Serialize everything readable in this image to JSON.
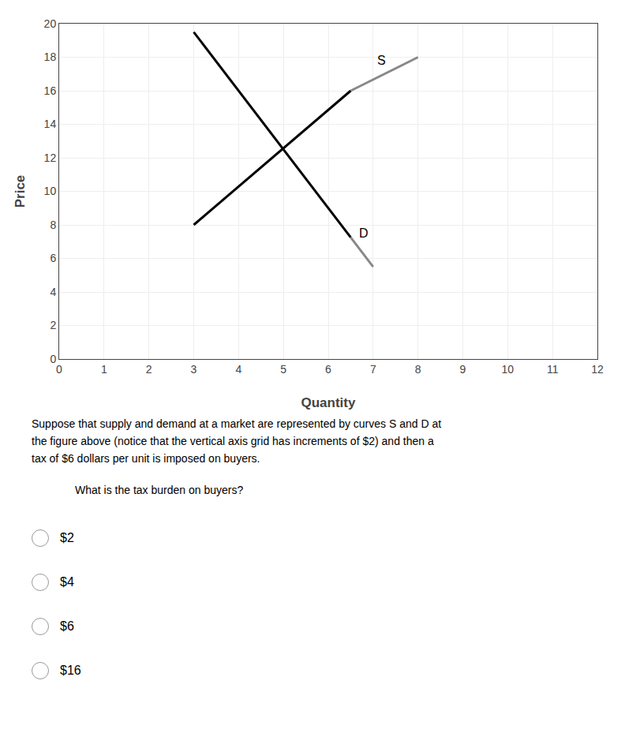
{
  "chart_data": {
    "type": "line",
    "xlabel": "Quantity",
    "ylabel": "Price",
    "xlim": [
      0,
      12
    ],
    "ylim": [
      0,
      20
    ],
    "xticks": [
      0,
      1,
      2,
      3,
      4,
      5,
      6,
      7,
      8,
      9,
      10,
      11,
      12
    ],
    "yticks": [
      0,
      2,
      4,
      6,
      8,
      10,
      12,
      14,
      16,
      18,
      20
    ],
    "grid": true,
    "series": [
      {
        "color": "#000000",
        "x": [
          3,
          6.5
        ],
        "values": [
          19.5,
          7.25
        ]
      },
      {
        "color": "#888888",
        "x": [
          6.5,
          7.0
        ],
        "values": [
          7.25,
          5.5
        ]
      },
      {
        "color": "#000000",
        "x": [
          3,
          6.5
        ],
        "values": [
          8.0,
          16.0
        ]
      },
      {
        "color": "#888888",
        "x": [
          6.5,
          8.0
        ],
        "values": [
          16.0,
          18.0
        ]
      }
    ],
    "annotations": [
      {
        "text": "S",
        "x": 7.05,
        "y": 17.8
      },
      {
        "text": "D",
        "x": 6.65,
        "y": 7.5
      }
    ],
    "paragraph": "Suppose that supply and demand at a market are represented by curves S and D at\nthe figure above (notice that the vertical axis grid has increments of $2) and then a\ntax of $6 dollars per unit is imposed on buyers.",
    "question": "What is the tax burden on buyers?",
    "choices": [
      "$2",
      "$4",
      "$6",
      "$16"
    ]
  }
}
